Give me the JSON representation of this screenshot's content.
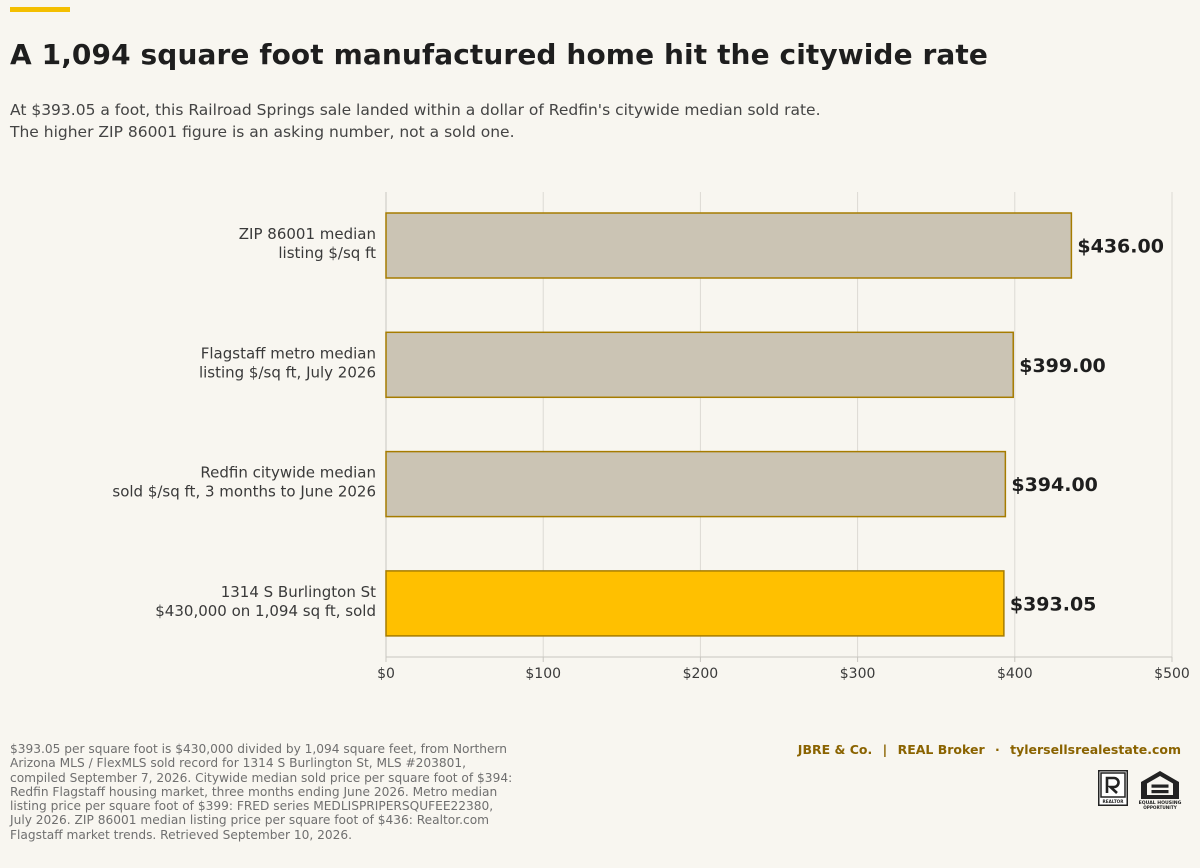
{
  "header": {
    "title": "A 1,094 square foot manufactured home hit the citywide rate",
    "subtitle_lines": [
      "At $393.05 a foot, this Railroad Springs sale landed within a dollar of Redfin's citywide median sold rate.",
      "The higher ZIP 86001 figure is an asking number, not a sold one."
    ]
  },
  "chart_data": {
    "type": "bar",
    "orientation": "horizontal",
    "categories": [
      [
        "ZIP 86001 median",
        "listing $/sq ft"
      ],
      [
        "Flagstaff metro median",
        "listing $/sq ft, July 2026"
      ],
      [
        "Redfin citywide median",
        "sold $/sq ft, 3 months to June 2026"
      ],
      [
        "1314 S Burlington St",
        "$430,000 on 1,094 sq ft, sold"
      ]
    ],
    "values": [
      436.0,
      399.0,
      394.0,
      393.05
    ],
    "value_labels": [
      "$436.00",
      "$399.00",
      "$394.00",
      "$393.05"
    ],
    "highlight_index": 3,
    "xlim": [
      0,
      500
    ],
    "xticks": [
      0,
      100,
      200,
      300,
      400,
      500
    ],
    "xtick_labels": [
      "$0",
      "$100",
      "$200",
      "$300",
      "$400",
      "$500"
    ],
    "grid": "vertical",
    "colors": {
      "bar": "#cbc4b4",
      "highlight": "#ffc000",
      "bar_border": "#a67c00",
      "grid": "#dcdad4",
      "axis": "#c8c6c0"
    }
  },
  "footer": {
    "source": "$393.05 per square foot is $430,000 divided by 1,094 square feet, from Northern Arizona MLS / FlexMLS sold record for 1314 S Burlington St, MLS #203801, compiled September 7, 2026. Citywide median sold price per square foot of $394: Redfin Flagstaff housing market, three months ending June 2026. Metro median listing price per square foot of $399: FRED series MEDLISPRIPERSQUFEE22380, July 2026. ZIP 86001 median listing price per square foot of $436: Realtor.com Flagstaff market trends. Retrieved September 10, 2026.",
    "brand": {
      "company": "JBRE & Co.",
      "divider": "|",
      "broker": "REAL Broker",
      "dot": "·",
      "website": "tylersellsrealestate.com"
    },
    "logos": {
      "realtor_text": "REALTOR",
      "eho_line1": "EQUAL HOUSING",
      "eho_line2": "OPPORTUNITY"
    }
  }
}
